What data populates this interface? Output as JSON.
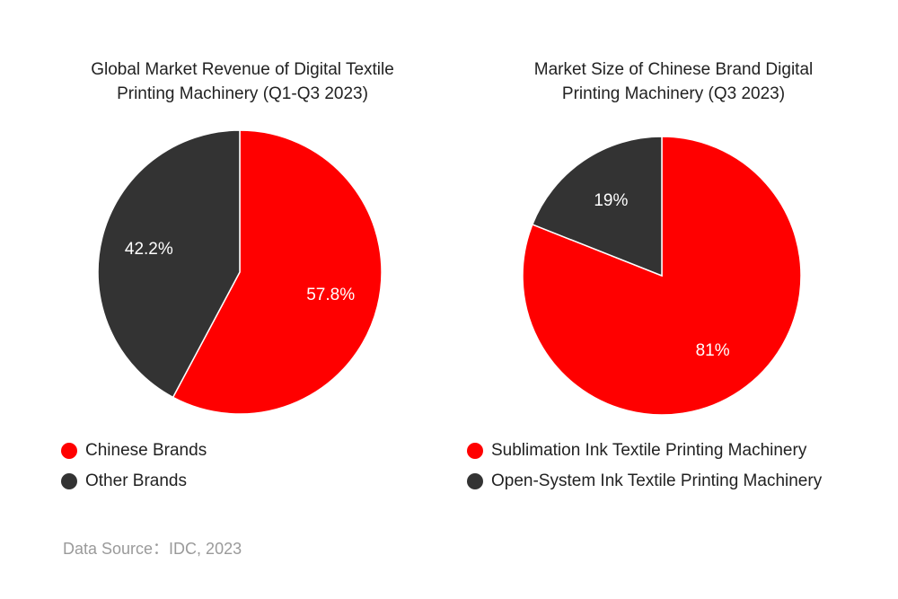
{
  "chart_data": [
    {
      "type": "pie",
      "title": "Global Market Revenue of Digital Textile Printing Machinery (Q1-Q3 2023)",
      "title_lines": [
        "Global Market Revenue of Digital Textile",
        "Printing Machinery (Q1-Q3 2023)"
      ],
      "categories": [
        "Chinese Brands",
        "Other Brands"
      ],
      "values": [
        57.8,
        42.2
      ],
      "labels": [
        "57.8%",
        "42.2%"
      ],
      "colors": [
        "#ff0000",
        "#333333"
      ],
      "start_angle": "12 o'clock",
      "direction": "clockwise",
      "legend": "bottom-left"
    },
    {
      "type": "pie",
      "title": "Market Size of Chinese Brand Digital Printing Machinery (Q3 2023)",
      "title_lines": [
        "Market Size of Chinese Brand Digital",
        "Printing Machinery (Q3 2023)"
      ],
      "categories": [
        "Sublimation Ink Textile Printing Machinery",
        "Open-System Ink Textile Printing Machinery"
      ],
      "values": [
        81,
        19
      ],
      "labels": [
        "81%",
        "19%"
      ],
      "colors": [
        "#ff0000",
        "#333333"
      ],
      "start_angle": "12 o'clock",
      "direction": "clockwise",
      "legend": "bottom-left"
    }
  ],
  "source": "Data Source：IDC, 2023"
}
